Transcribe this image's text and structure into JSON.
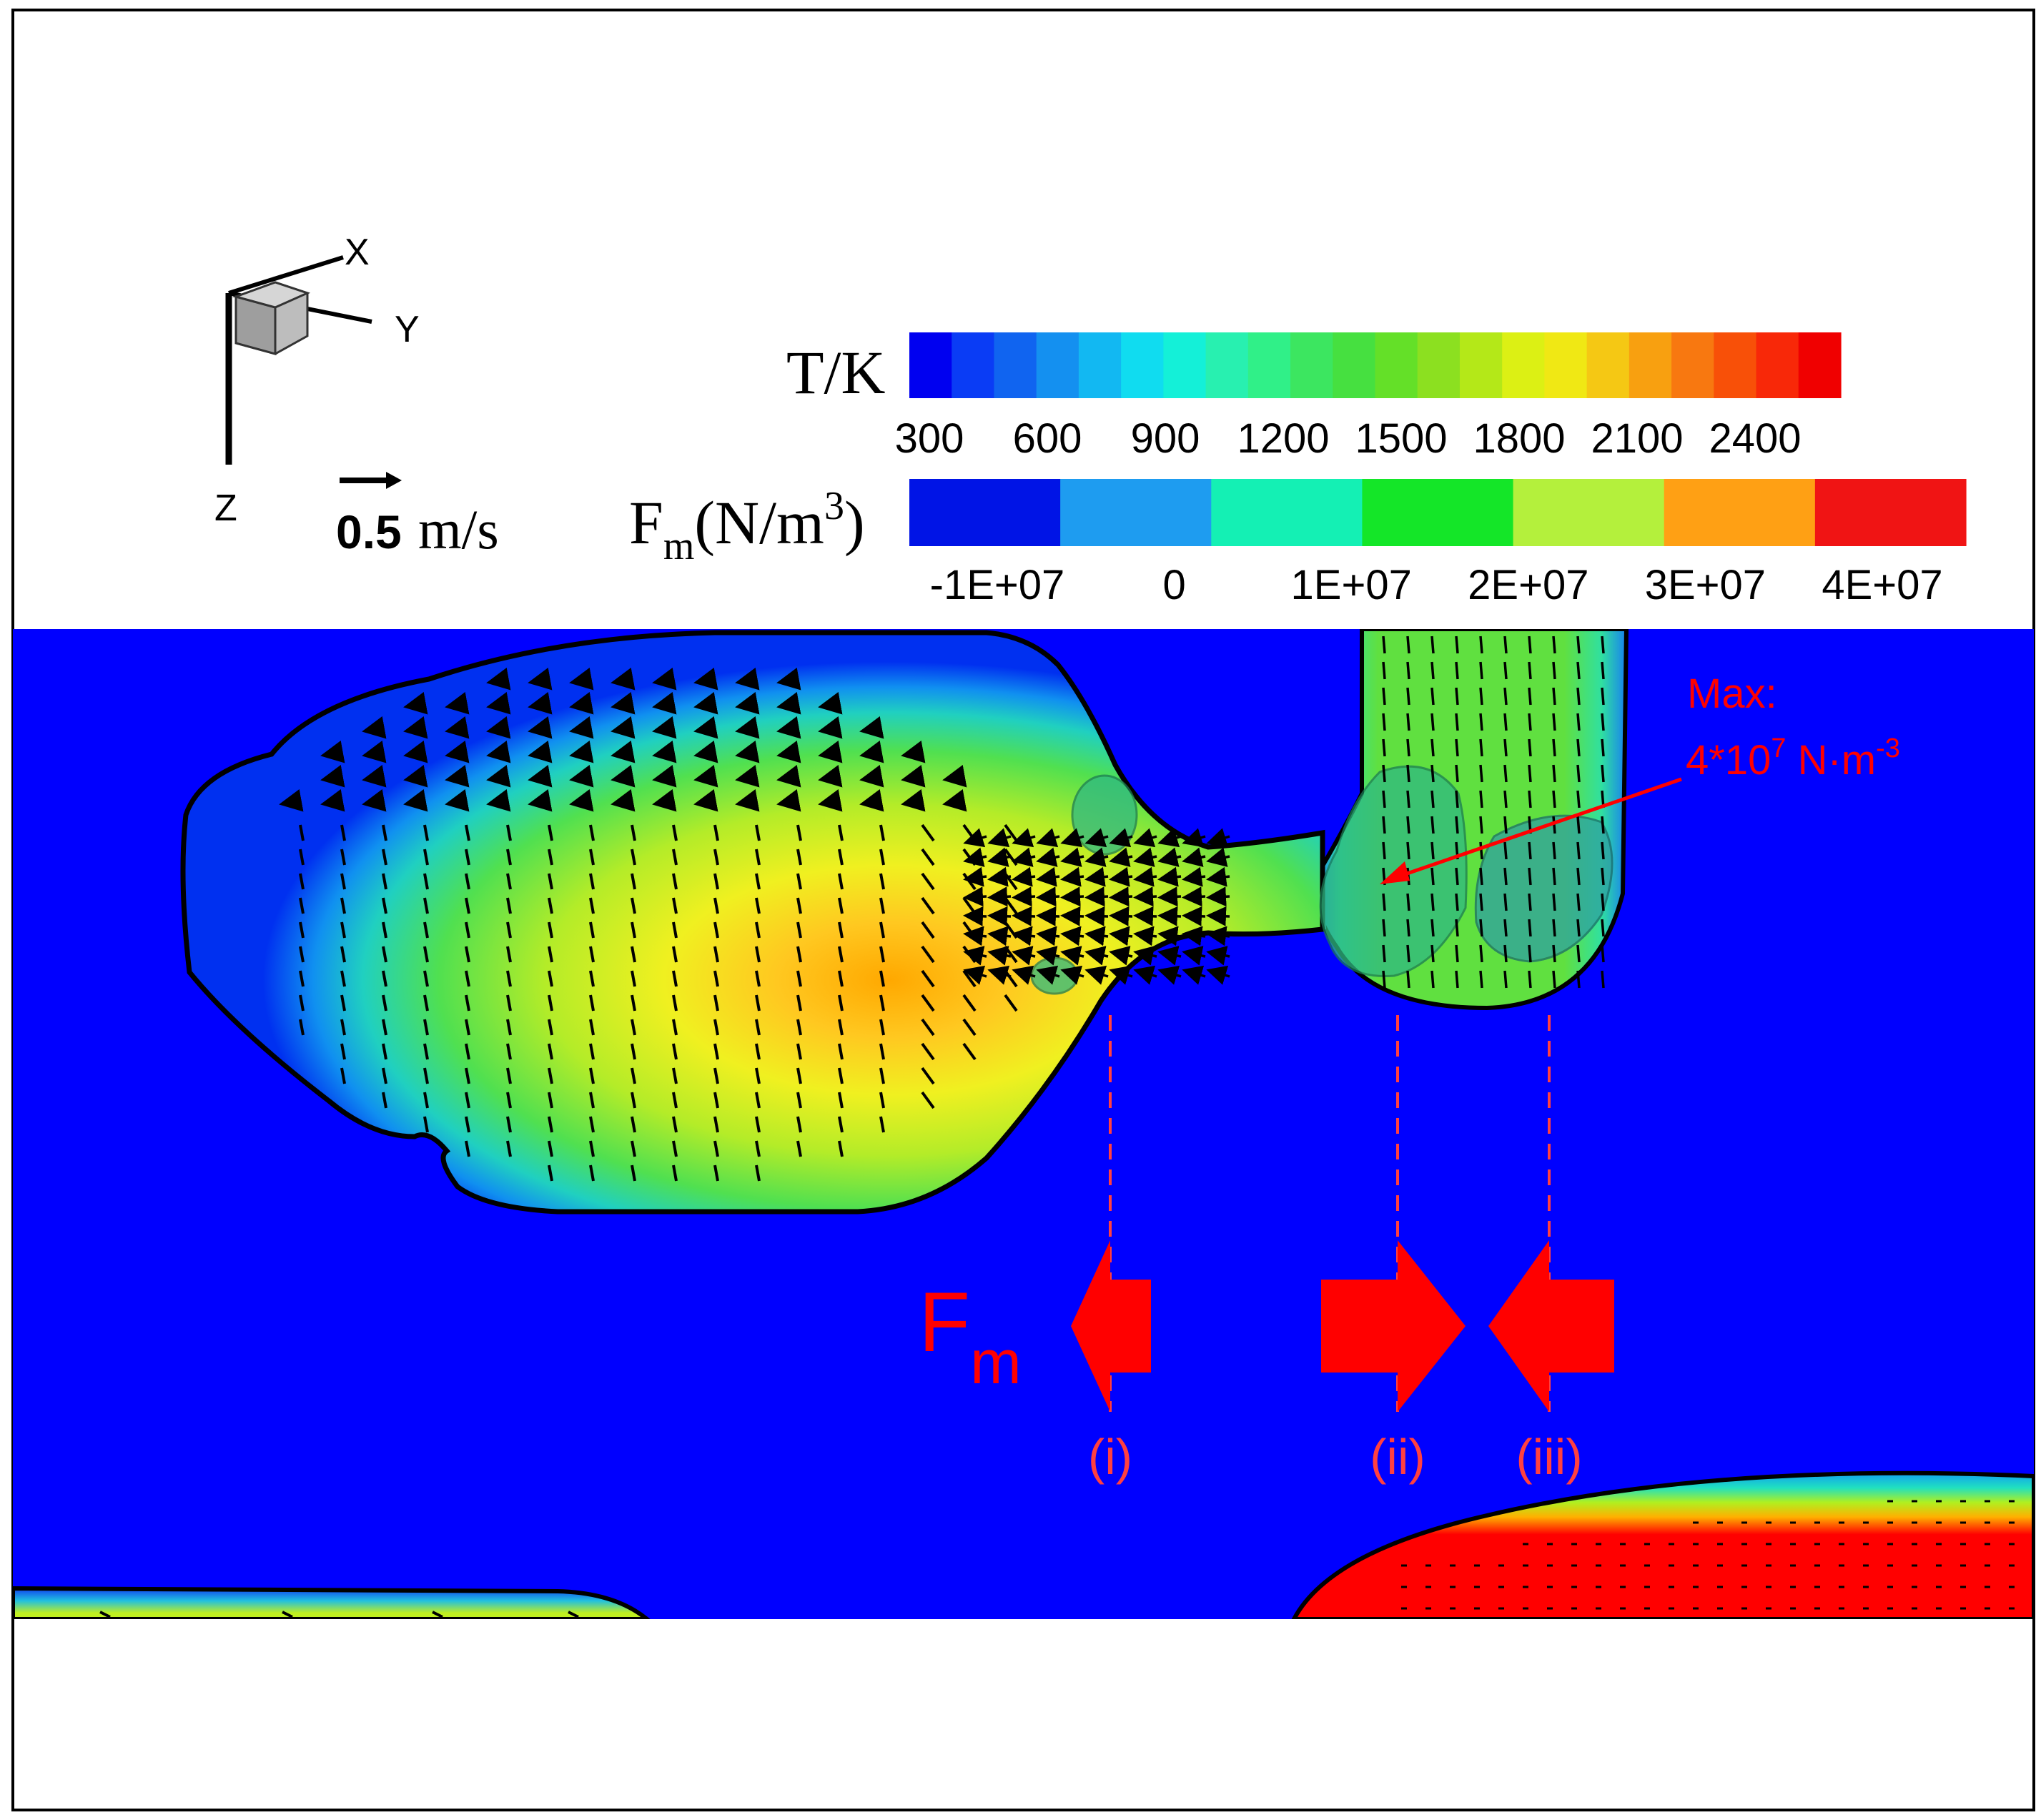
{
  "axes_triad": {
    "x": "X",
    "y": "Y",
    "z": "Z"
  },
  "reference_vector": {
    "value": "0.5",
    "unit": "m/s"
  },
  "temperature_legend": {
    "title": "T/K",
    "ticks": [
      "300",
      "600",
      "900",
      "1200",
      "1500",
      "1800",
      "2100",
      "2400"
    ],
    "colors": [
      "#0000f0",
      "#0a3cf5",
      "#1064f0",
      "#1490f0",
      "#12b8f2",
      "#10dcf0",
      "#14f0d8",
      "#28f0b0",
      "#30f088",
      "#3ce660",
      "#46e040",
      "#64e028",
      "#8ce020",
      "#b4e818",
      "#dcf014",
      "#f0e814",
      "#f5c814",
      "#f8a010",
      "#f87810",
      "#f85008",
      "#f82808",
      "#f00000"
    ]
  },
  "force_legend": {
    "title_main": "F",
    "title_sub": "m",
    "title_unit": "(N/m",
    "title_sup": "3",
    "title_close": ")",
    "ticks": [
      "-1E+07",
      "0",
      "1E+07",
      "2E+07",
      "3E+07",
      "4E+07"
    ],
    "colors": [
      "#0014e6",
      "#1e9cf0",
      "#14f0b4",
      "#14e628",
      "#b4f03c",
      "#ffa014",
      "#f01414"
    ]
  },
  "annotation": {
    "line1": "Max:",
    "line2_base": "4*10",
    "line2_sup": "7",
    "line2_unit": " N·m",
    "line2_unit_sup": "-3"
  },
  "force_label": {
    "main": "F",
    "sub": "m"
  },
  "markers": [
    "(i)",
    "(ii)",
    "(iii)"
  ],
  "colors": {
    "background_field": "#0000ff",
    "annotation_red": "#ff0000",
    "isosurface": "#2fb882"
  }
}
